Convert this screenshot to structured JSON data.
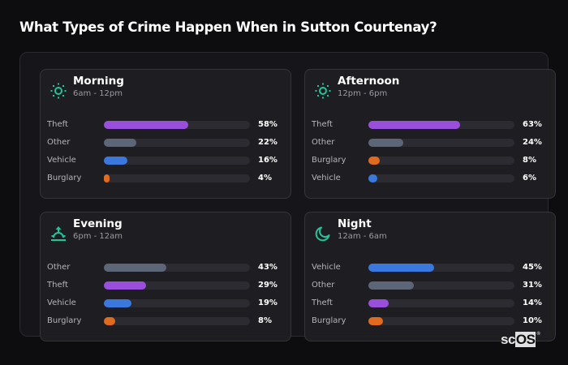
{
  "title": "What Types of Crime Happen When in Sutton Courtenay?",
  "colors": {
    "theft": "#9a4fdc",
    "other": "#5d6677",
    "vehicle": "#3a78dd",
    "burglary": "#e06a1e",
    "accent": "#22c49a"
  },
  "cards": [
    {
      "title": "Morning",
      "subtitle": "6am - 12pm",
      "icon": "sun-icon",
      "rows": [
        {
          "label": "Theft",
          "value": 58,
          "display": "58%",
          "color": "#9a4fdc"
        },
        {
          "label": "Other",
          "value": 22,
          "display": "22%",
          "color": "#5d6677"
        },
        {
          "label": "Vehicle",
          "value": 16,
          "display": "16%",
          "color": "#3a78dd"
        },
        {
          "label": "Burglary",
          "value": 4,
          "display": "4%",
          "color": "#e06a1e"
        }
      ]
    },
    {
      "title": "Afternoon",
      "subtitle": "12pm - 6pm",
      "icon": "sun-icon",
      "rows": [
        {
          "label": "Theft",
          "value": 63,
          "display": "63%",
          "color": "#9a4fdc"
        },
        {
          "label": "Other",
          "value": 24,
          "display": "24%",
          "color": "#5d6677"
        },
        {
          "label": "Burglary",
          "value": 8,
          "display": "8%",
          "color": "#e06a1e"
        },
        {
          "label": "Vehicle",
          "value": 6,
          "display": "6%",
          "color": "#3a78dd"
        }
      ]
    },
    {
      "title": "Evening",
      "subtitle": "6pm - 12am",
      "icon": "sunset-icon",
      "rows": [
        {
          "label": "Other",
          "value": 43,
          "display": "43%",
          "color": "#5d6677"
        },
        {
          "label": "Theft",
          "value": 29,
          "display": "29%",
          "color": "#9a4fdc"
        },
        {
          "label": "Vehicle",
          "value": 19,
          "display": "19%",
          "color": "#3a78dd"
        },
        {
          "label": "Burglary",
          "value": 8,
          "display": "8%",
          "color": "#e06a1e"
        }
      ]
    },
    {
      "title": "Night",
      "subtitle": "12am - 6am",
      "icon": "moon-icon",
      "rows": [
        {
          "label": "Vehicle",
          "value": 45,
          "display": "45%",
          "color": "#3a78dd"
        },
        {
          "label": "Other",
          "value": 31,
          "display": "31%",
          "color": "#5d6677"
        },
        {
          "label": "Theft",
          "value": 14,
          "display": "14%",
          "color": "#9a4fdc"
        },
        {
          "label": "Burglary",
          "value": 10,
          "display": "10%",
          "color": "#e06a1e"
        }
      ]
    }
  ],
  "logo": {
    "prefix": "sc",
    "box": "OS",
    "mark": "®"
  },
  "chart_data": [
    {
      "type": "bar",
      "orientation": "horizontal",
      "title": "Morning",
      "subtitle": "6am - 12pm",
      "categories": [
        "Theft",
        "Other",
        "Vehicle",
        "Burglary"
      ],
      "values": [
        58,
        22,
        16,
        4
      ],
      "unit": "%",
      "xlim": [
        0,
        100
      ]
    },
    {
      "type": "bar",
      "orientation": "horizontal",
      "title": "Afternoon",
      "subtitle": "12pm - 6pm",
      "categories": [
        "Theft",
        "Other",
        "Burglary",
        "Vehicle"
      ],
      "values": [
        63,
        24,
        8,
        6
      ],
      "unit": "%",
      "xlim": [
        0,
        100
      ]
    },
    {
      "type": "bar",
      "orientation": "horizontal",
      "title": "Evening",
      "subtitle": "6pm - 12am",
      "categories": [
        "Other",
        "Theft",
        "Vehicle",
        "Burglary"
      ],
      "values": [
        43,
        29,
        19,
        8
      ],
      "unit": "%",
      "xlim": [
        0,
        100
      ]
    },
    {
      "type": "bar",
      "orientation": "horizontal",
      "title": "Night",
      "subtitle": "12am - 6am",
      "categories": [
        "Vehicle",
        "Other",
        "Theft",
        "Burglary"
      ],
      "values": [
        45,
        31,
        14,
        10
      ],
      "unit": "%",
      "xlim": [
        0,
        100
      ]
    }
  ]
}
